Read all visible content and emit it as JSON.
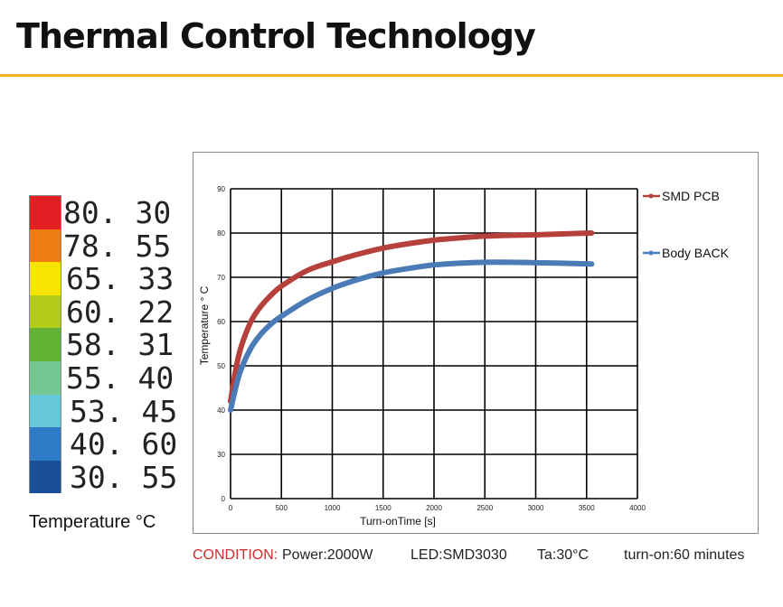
{
  "page": {
    "title": "Thermal Control Technology"
  },
  "color_scale": {
    "caption": "Temperature °C",
    "items": [
      {
        "label": "80. 30",
        "color": "#e41f24"
      },
      {
        "label": "78. 55",
        "color": "#ef7d12"
      },
      {
        "label": "65. 33",
        "color": "#f5e500"
      },
      {
        "label": "60. 22",
        "color": "#b3cc1c"
      },
      {
        "label": "58. 31",
        "color": "#62b236"
      },
      {
        "label": "55. 40",
        "color": "#74c790"
      },
      {
        "label": "53. 45",
        "color": "#68c8db"
      },
      {
        "label": "40. 60",
        "color": "#2f7bc7"
      },
      {
        "label": "30. 55",
        "color": "#1a4f9a"
      }
    ]
  },
  "chart_data": {
    "type": "line",
    "title": "",
    "xlabel": "Turn-onTime [s]",
    "ylabel": "Temperature ° C",
    "xlim": [
      0,
      4000
    ],
    "ylim": [
      0,
      90
    ],
    "x_ticks": [
      "0",
      "500",
      "1000",
      "1500",
      "2000",
      "2500",
      "3000",
      "3500",
      "4000"
    ],
    "y_ticks": [
      "0",
      "30",
      "40",
      "50",
      "60",
      "70",
      "80",
      "90"
    ],
    "grid": true,
    "legend_position": "right",
    "series": [
      {
        "name": "SMD PCB",
        "color": "#b5403c",
        "points": [
          [
            0,
            42
          ],
          [
            50,
            49
          ],
          [
            100,
            54
          ],
          [
            200,
            60
          ],
          [
            300,
            63.5
          ],
          [
            400,
            66
          ],
          [
            500,
            68
          ],
          [
            750,
            71.5
          ],
          [
            1000,
            73.5
          ],
          [
            1250,
            75.2
          ],
          [
            1500,
            76.6
          ],
          [
            1750,
            77.6
          ],
          [
            2000,
            78.4
          ],
          [
            2250,
            78.9
          ],
          [
            2500,
            79.3
          ],
          [
            2750,
            79.5
          ],
          [
            3000,
            79.6
          ],
          [
            3250,
            79.8
          ],
          [
            3550,
            80
          ]
        ]
      },
      {
        "name": "Body BACK",
        "color": "#4a7bb7",
        "points": [
          [
            0,
            40
          ],
          [
            50,
            45
          ],
          [
            100,
            49
          ],
          [
            200,
            54
          ],
          [
            300,
            57.2
          ],
          [
            400,
            59.5
          ],
          [
            500,
            61.2
          ],
          [
            750,
            64.8
          ],
          [
            1000,
            67.5
          ],
          [
            1250,
            69.5
          ],
          [
            1500,
            71
          ],
          [
            1750,
            72
          ],
          [
            2000,
            72.8
          ],
          [
            2250,
            73.2
          ],
          [
            2500,
            73.4
          ],
          [
            2750,
            73.4
          ],
          [
            3000,
            73.3
          ],
          [
            3250,
            73.2
          ],
          [
            3550,
            73
          ]
        ]
      }
    ]
  },
  "condition": {
    "label": "CONDITION:",
    "power": "Power:2000W",
    "led": "LED:SMD3030",
    "ta": "Ta:30°C",
    "turn_on": "turn-on:60 minutes"
  }
}
